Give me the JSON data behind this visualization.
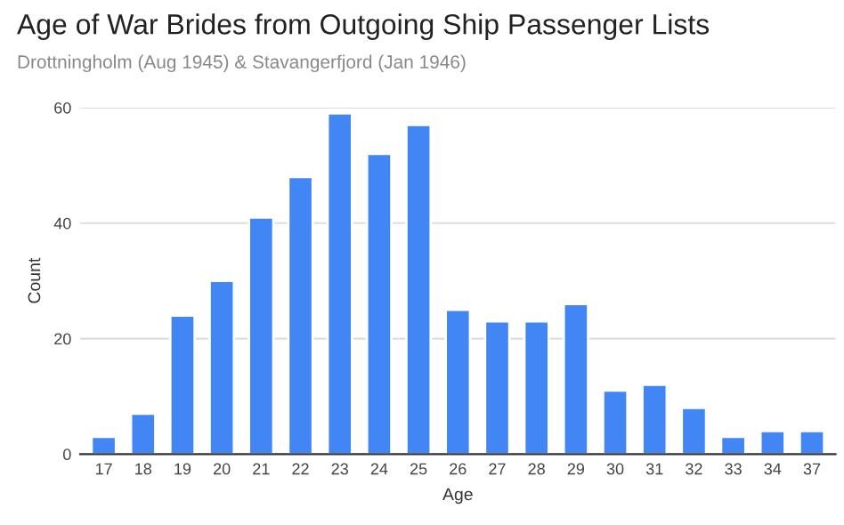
{
  "chart_data": {
    "type": "bar",
    "title": "Age of War Brides from Outgoing Ship Passenger Lists",
    "subtitle": "Drottningholm (Aug 1945) & Stavangerfjord (Jan 1946)",
    "xlabel": "Age",
    "ylabel": "Count",
    "categories": [
      "17",
      "18",
      "19",
      "20",
      "21",
      "22",
      "23",
      "24",
      "25",
      "26",
      "27",
      "28",
      "29",
      "30",
      "31",
      "32",
      "33",
      "34",
      "37"
    ],
    "values": [
      3,
      7,
      24,
      30,
      41,
      48,
      59,
      52,
      57,
      25,
      23,
      23,
      26,
      11,
      12,
      8,
      3,
      4,
      4
    ],
    "color": "#4285f4",
    "ylim": [
      0,
      60
    ],
    "yticks": [
      0,
      20,
      40,
      60
    ],
    "grid": "y"
  }
}
